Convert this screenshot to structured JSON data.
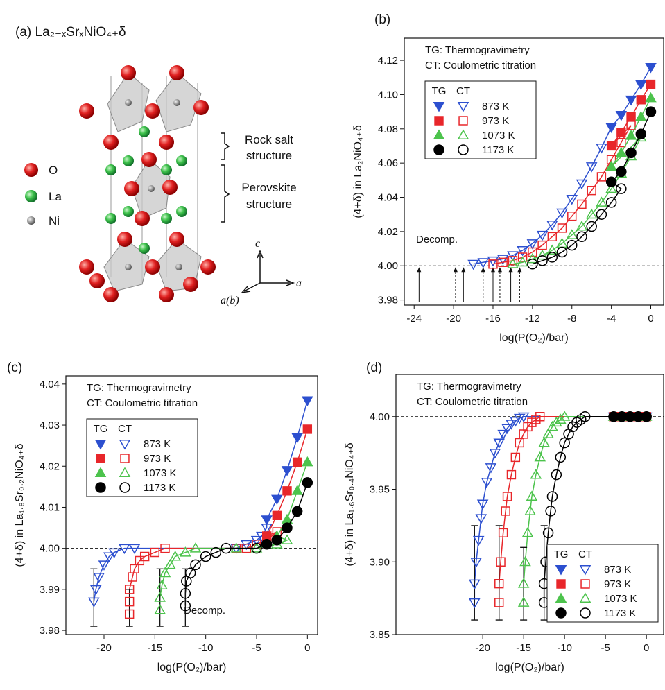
{
  "structure": {
    "label": "(a) La₂₋ₓSrₓNiO₄₊δ",
    "legend": [
      "O",
      "La",
      "Ni"
    ],
    "rock_salt": [
      "Rock salt",
      "structure"
    ],
    "perovskite": [
      "Perovskite",
      "structure"
    ],
    "axes": [
      "c",
      "a",
      "a(b)"
    ]
  },
  "chart_data": [
    {
      "type": "scatter",
      "panel": "(b)",
      "annotations": [
        "TG: Thermogravimetry",
        "CT: Coulometric titration"
      ],
      "decomp_label": "Decomp.",
      "x_label": "log(P(O₂)/bar)",
      "y_label": "(4+δ) in La₂NiO₄₊δ",
      "xlim": [
        -25,
        1.3
      ],
      "ylim": [
        3.977,
        4.133
      ],
      "xticks": [
        -24,
        -20,
        -16,
        -12,
        -8,
        -4,
        0
      ],
      "yticks": [
        3.98,
        {
          "value": 4,
          "label": "4.00"
        },
        4.02,
        4.04,
        4.06,
        4.08,
        {
          "value": 4.1,
          "label": "4.10"
        },
        4.12
      ],
      "reference_line": 4,
      "decomp_arrows": [
        -23.5,
        -19.8,
        -19,
        -17,
        -16,
        -15.3,
        -14.2,
        -13.3
      ],
      "legend_headers": [
        "TG",
        "CT"
      ],
      "legend": "upper left",
      "series": [
        {
          "name": "873 K",
          "color": "#2c4fcf",
          "marker": "v",
          "ct": {
            "x": [
              -18,
              -17,
              -16,
              -15,
              -14,
              -13,
              -12,
              -11,
              -10,
              -9,
              -8,
              -7,
              -6,
              -5,
              -4
            ],
            "values": [
              4.001,
              4.002,
              4.003,
              4.004,
              4.006,
              4.009,
              4.013,
              4.018,
              4.024,
              4.031,
              4.039,
              4.048,
              4.058,
              4.069,
              4.081
            ]
          },
          "tg": {
            "x": [
              -4,
              -3,
              -2,
              -1,
              0
            ],
            "values": [
              4.081,
              4.088,
              4.097,
              4.106,
              4.116
            ]
          }
        },
        {
          "name": "973 K",
          "color": "#e8262a",
          "marker": "s",
          "ct": {
            "x": [
              -16,
              -15,
              -14,
              -13,
              -12,
              -11,
              -10,
              -9,
              -8,
              -7,
              -6,
              -5,
              -4,
              -3,
              -2
            ],
            "values": [
              4.001,
              4.002,
              4.003,
              4.005,
              4.008,
              4.012,
              4.017,
              4.022,
              4.029,
              4.036,
              4.044,
              4.052,
              4.062,
              4.072,
              4.082
            ]
          },
          "tg": {
            "x": [
              -4,
              -3,
              -2,
              -1,
              0
            ],
            "values": [
              4.07,
              4.078,
              4.087,
              4.097,
              4.106
            ]
          }
        },
        {
          "name": "1073 K",
          "color": "#4cc34c",
          "marker": "^",
          "ct": {
            "x": [
              -14,
              -13,
              -12,
              -11,
              -10,
              -9,
              -8,
              -7,
              -6,
              -5,
              -4,
              -3,
              -2,
              -1
            ],
            "values": [
              4.001,
              4.002,
              4.004,
              4.006,
              4.009,
              4.013,
              4.018,
              4.023,
              4.03,
              4.037,
              4.045,
              4.054,
              4.064,
              4.075
            ]
          },
          "tg": {
            "x": [
              -4,
              -3,
              -2,
              -1,
              0
            ],
            "values": [
              4.058,
              4.066,
              4.076,
              4.087,
              4.098
            ]
          }
        },
        {
          "name": "1173 K",
          "color": "#000000",
          "marker": "o",
          "ct": {
            "x": [
              -12,
              -11,
              -10,
              -9,
              -8,
              -7,
              -6,
              -5,
              -4,
              -3
            ],
            "values": [
              4.001,
              4.003,
              4.005,
              4.008,
              4.012,
              4.017,
              4.023,
              4.03,
              4.037,
              4.045
            ]
          },
          "tg": {
            "x": [
              -4,
              -3,
              -2,
              -1,
              0
            ],
            "values": [
              4.049,
              4.055,
              4.066,
              4.077,
              4.09
            ]
          }
        }
      ]
    },
    {
      "type": "scatter",
      "panel": "(c)",
      "annotations": [
        "TG: Thermogravimetry",
        "CT: Coulometric titration"
      ],
      "decomp_label": "Decomp.",
      "x_label": "log(P(O₂)/bar)",
      "y_label": "(4+δ) in La₁.₈Sr₀.₂NiO₄₊δ",
      "xlim": [
        -23.75,
        1
      ],
      "ylim": [
        3.979,
        4.042
      ],
      "xticks": [
        -20,
        -15,
        -10,
        -5,
        0
      ],
      "yticks": [
        3.98,
        3.99,
        {
          "value": 4,
          "label": "4.00"
        },
        4.01,
        4.02,
        4.03,
        4.04
      ],
      "reference_line": 4,
      "legend_headers": [
        "TG",
        "CT"
      ],
      "legend": "upper left",
      "series": [
        {
          "name": "873 K",
          "color": "#2c4fcf",
          "marker": "v",
          "ct": {
            "x": [
              -21,
              -20.8,
              -20.5,
              -20,
              -19.5,
              -19,
              -18,
              -17,
              -7,
              -6,
              -5,
              -4.5,
              -4
            ],
            "values": [
              3.987,
              3.99,
              3.993,
              3.996,
              3.998,
              3.999,
              4.0,
              4.0,
              4.0,
              4.001,
              4.002,
              4.003,
              4.005
            ]
          },
          "tg": {
            "x": [
              -4,
              -3,
              -2,
              -1,
              0
            ],
            "values": [
              4.007,
              4.012,
              4.019,
              4.027,
              4.036
            ]
          },
          "errbar": {
            "x": -21,
            "low": 3.981,
            "high": 3.995
          }
        },
        {
          "name": "973 K",
          "color": "#e8262a",
          "marker": "s",
          "ct": {
            "x": [
              -17.5,
              -17.5,
              -17.5,
              -17.2,
              -17,
              -16.5,
              -16,
              -15,
              -14,
              -7,
              -6,
              -5,
              -4,
              -3
            ],
            "values": [
              3.984,
              3.987,
              3.99,
              3.993,
              3.995,
              3.997,
              3.998,
              3.999,
              4.0,
              4.0,
              4.0,
              4.001,
              4.002,
              4.004
            ]
          },
          "tg": {
            "x": [
              -4,
              -3,
              -2,
              -1,
              0
            ],
            "values": [
              4.003,
              4.008,
              4.014,
              4.021,
              4.029
            ]
          },
          "errbar": {
            "x": -17.5,
            "low": 3.981,
            "high": 3.99
          }
        },
        {
          "name": "1073 K",
          "color": "#4cc34c",
          "marker": "^",
          "ct": {
            "x": [
              -14.5,
              -14.5,
              -14.3,
              -14,
              -13.5,
              -13,
              -12,
              -11,
              -7,
              -5,
              -3,
              -2
            ],
            "values": [
              3.985,
              3.988,
              3.991,
              3.994,
              3.996,
              3.998,
              3.999,
              4.0,
              4.0,
              4.0,
              4.001,
              4.002
            ]
          },
          "tg": {
            "x": [
              -3,
              -2,
              -1,
              0
            ],
            "values": [
              4.003,
              4.007,
              4.014,
              4.021
            ]
          },
          "errbar": {
            "x": -14.5,
            "low": 3.981,
            "high": 3.995
          }
        },
        {
          "name": "1173 K",
          "color": "#000000",
          "marker": "o",
          "ct": {
            "x": [
              -12,
              -12,
              -11.9,
              -11.5,
              -11,
              -10,
              -9,
              -8,
              -5,
              -4
            ],
            "values": [
              3.986,
              3.989,
              3.992,
              3.994,
              3.996,
              3.998,
              3.999,
              4.0,
              4.0,
              4.001
            ]
          },
          "tg": {
            "x": [
              -4,
              -3,
              -2,
              -1,
              0
            ],
            "values": [
              4.001,
              4.002,
              4.005,
              4.009,
              4.016
            ]
          },
          "errbar": {
            "x": -12,
            "low": 3.981,
            "high": 3.995
          }
        }
      ]
    },
    {
      "type": "scatter",
      "panel": "(d)",
      "annotations": [
        "TG: Thermogravimetry",
        "CT: Coulometric titration"
      ],
      "x_label": "log(P(O₂)/bar)",
      "y_label": "(4+δ) in La₁.₆Sr₀.₄NiO₄₊δ",
      "xlim": [
        -30.6,
        2.1
      ],
      "ylim": [
        3.85,
        4.029
      ],
      "xticks": [
        -20,
        -15,
        -10,
        -5,
        0
      ],
      "yticks": [
        3.85,
        {
          "value": 3.9,
          "label": "3.90"
        },
        3.95,
        {
          "value": 4,
          "label": "4.00"
        }
      ],
      "reference_line": 4,
      "legend_headers": [
        "TG",
        "CT"
      ],
      "legend": "lower right",
      "series": [
        {
          "name": "873 K",
          "color": "#2c4fcf",
          "marker": "v",
          "ct": {
            "x": [
              -21,
              -21,
              -20.8,
              -20.5,
              -20.2,
              -20,
              -19.5,
              -19,
              -18.5,
              -18,
              -17.5,
              -17,
              -16.5,
              -16,
              -15.5,
              -15
            ],
            "values": [
              3.872,
              3.885,
              3.9,
              3.915,
              3.93,
              3.94,
              3.955,
              3.965,
              3.975,
              3.982,
              3.988,
              3.992,
              3.995,
              3.997,
              3.999,
              4.0
            ]
          },
          "tg": {
            "x": [
              -4,
              -3,
              -2,
              -1,
              0
            ],
            "values": [
              4,
              4,
              4,
              4,
              4
            ]
          },
          "errbar": {
            "x": -21,
            "low": 3.86,
            "high": 3.925
          }
        },
        {
          "name": "973 K",
          "color": "#e8262a",
          "marker": "s",
          "ct": {
            "x": [
              -18,
              -18,
              -17.8,
              -17.5,
              -17.2,
              -17,
              -16.5,
              -16,
              -15.5,
              -15,
              -14.5,
              -14,
              -13.5,
              -13
            ],
            "values": [
              3.872,
              3.885,
              3.9,
              3.92,
              3.935,
              3.945,
              3.96,
              3.972,
              3.982,
              3.988,
              3.993,
              3.996,
              3.998,
              4.0
            ]
          },
          "tg": {
            "x": [
              -4,
              -3,
              -2,
              -1,
              0
            ],
            "values": [
              4,
              4,
              4,
              4,
              4
            ]
          },
          "errbar": {
            "x": -18,
            "low": 3.86,
            "high": 3.925
          }
        },
        {
          "name": "1073 K",
          "color": "#4cc34c",
          "marker": "^",
          "ct": {
            "x": [
              -15,
              -15,
              -14.8,
              -14.5,
              -14.2,
              -14,
              -13.5,
              -13,
              -12.5,
              -12,
              -11.5,
              -11,
              -10.5,
              -10
            ],
            "values": [
              3.872,
              3.885,
              3.9,
              3.92,
              3.935,
              3.945,
              3.96,
              3.972,
              3.982,
              3.988,
              3.993,
              3.996,
              3.998,
              4.0
            ]
          },
          "tg": {
            "x": [
              -4,
              -3,
              -2,
              -1,
              0
            ],
            "values": [
              4,
              4,
              4,
              4,
              4
            ]
          },
          "errbar": {
            "x": -15,
            "low": 3.86,
            "high": 3.91
          }
        },
        {
          "name": "1173 K",
          "color": "#000000",
          "marker": "o",
          "ct": {
            "x": [
              -12.5,
              -12.5,
              -12.3,
              -12,
              -11.7,
              -11.5,
              -11,
              -10.5,
              -10,
              -9.5,
              -9,
              -8.5,
              -8,
              -7.5
            ],
            "values": [
              3.872,
              3.885,
              3.9,
              3.92,
              3.935,
              3.945,
              3.96,
              3.972,
              3.982,
              3.988,
              3.993,
              3.996,
              3.998,
              4.0
            ]
          },
          "tg": {
            "x": [
              -4,
              -3,
              -2,
              -1,
              0
            ],
            "values": [
              4,
              4,
              4,
              4,
              4
            ]
          },
          "errbar": {
            "x": -12.5,
            "low": 3.86,
            "high": 3.925
          }
        }
      ]
    }
  ]
}
